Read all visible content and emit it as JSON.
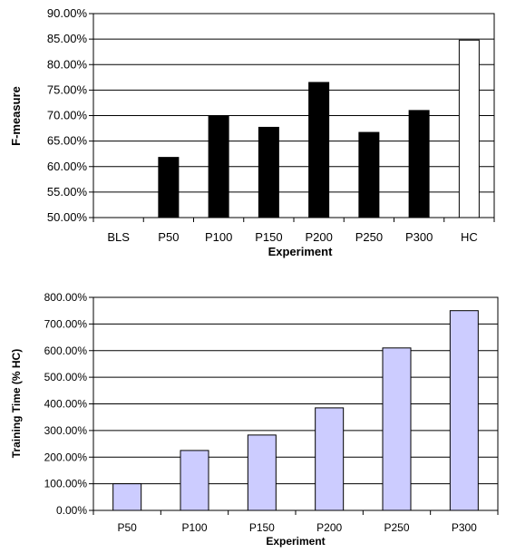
{
  "chart_data": [
    {
      "type": "bar",
      "title": "",
      "xlabel": "Experiment",
      "ylabel": "F-measure",
      "categories": [
        "BLS",
        "P50",
        "P100",
        "P150",
        "P200",
        "P250",
        "P300",
        "HC"
      ],
      "values": [
        50.0,
        61.8,
        70.0,
        67.7,
        76.5,
        66.7,
        71.0,
        84.8
      ],
      "bar_colors": [
        "#000000",
        "#000000",
        "#000000",
        "#000000",
        "#000000",
        "#000000",
        "#000000",
        "#ffffff"
      ],
      "ylim": [
        50,
        90
      ],
      "yticks": [
        "50.00%",
        "55.00%",
        "60.00%",
        "65.00%",
        "70.00%",
        "75.00%",
        "80.00%",
        "85.00%",
        "90.00%"
      ],
      "grid": true
    },
    {
      "type": "bar",
      "title": "",
      "xlabel": "Experiment",
      "ylabel": "Training Time (% HC)",
      "categories": [
        "P50",
        "P100",
        "P150",
        "P200",
        "P250",
        "P300"
      ],
      "values": [
        100,
        225,
        283,
        385,
        610,
        750
      ],
      "bar_colors": [
        "#ccccff",
        "#ccccff",
        "#ccccff",
        "#ccccff",
        "#ccccff",
        "#ccccff"
      ],
      "ylim": [
        0,
        800
      ],
      "yticks": [
        "0.00%",
        "100.00%",
        "200.00%",
        "300.00%",
        "400.00%",
        "500.00%",
        "600.00%",
        "700.00%",
        "800.00%"
      ],
      "grid": true
    }
  ]
}
